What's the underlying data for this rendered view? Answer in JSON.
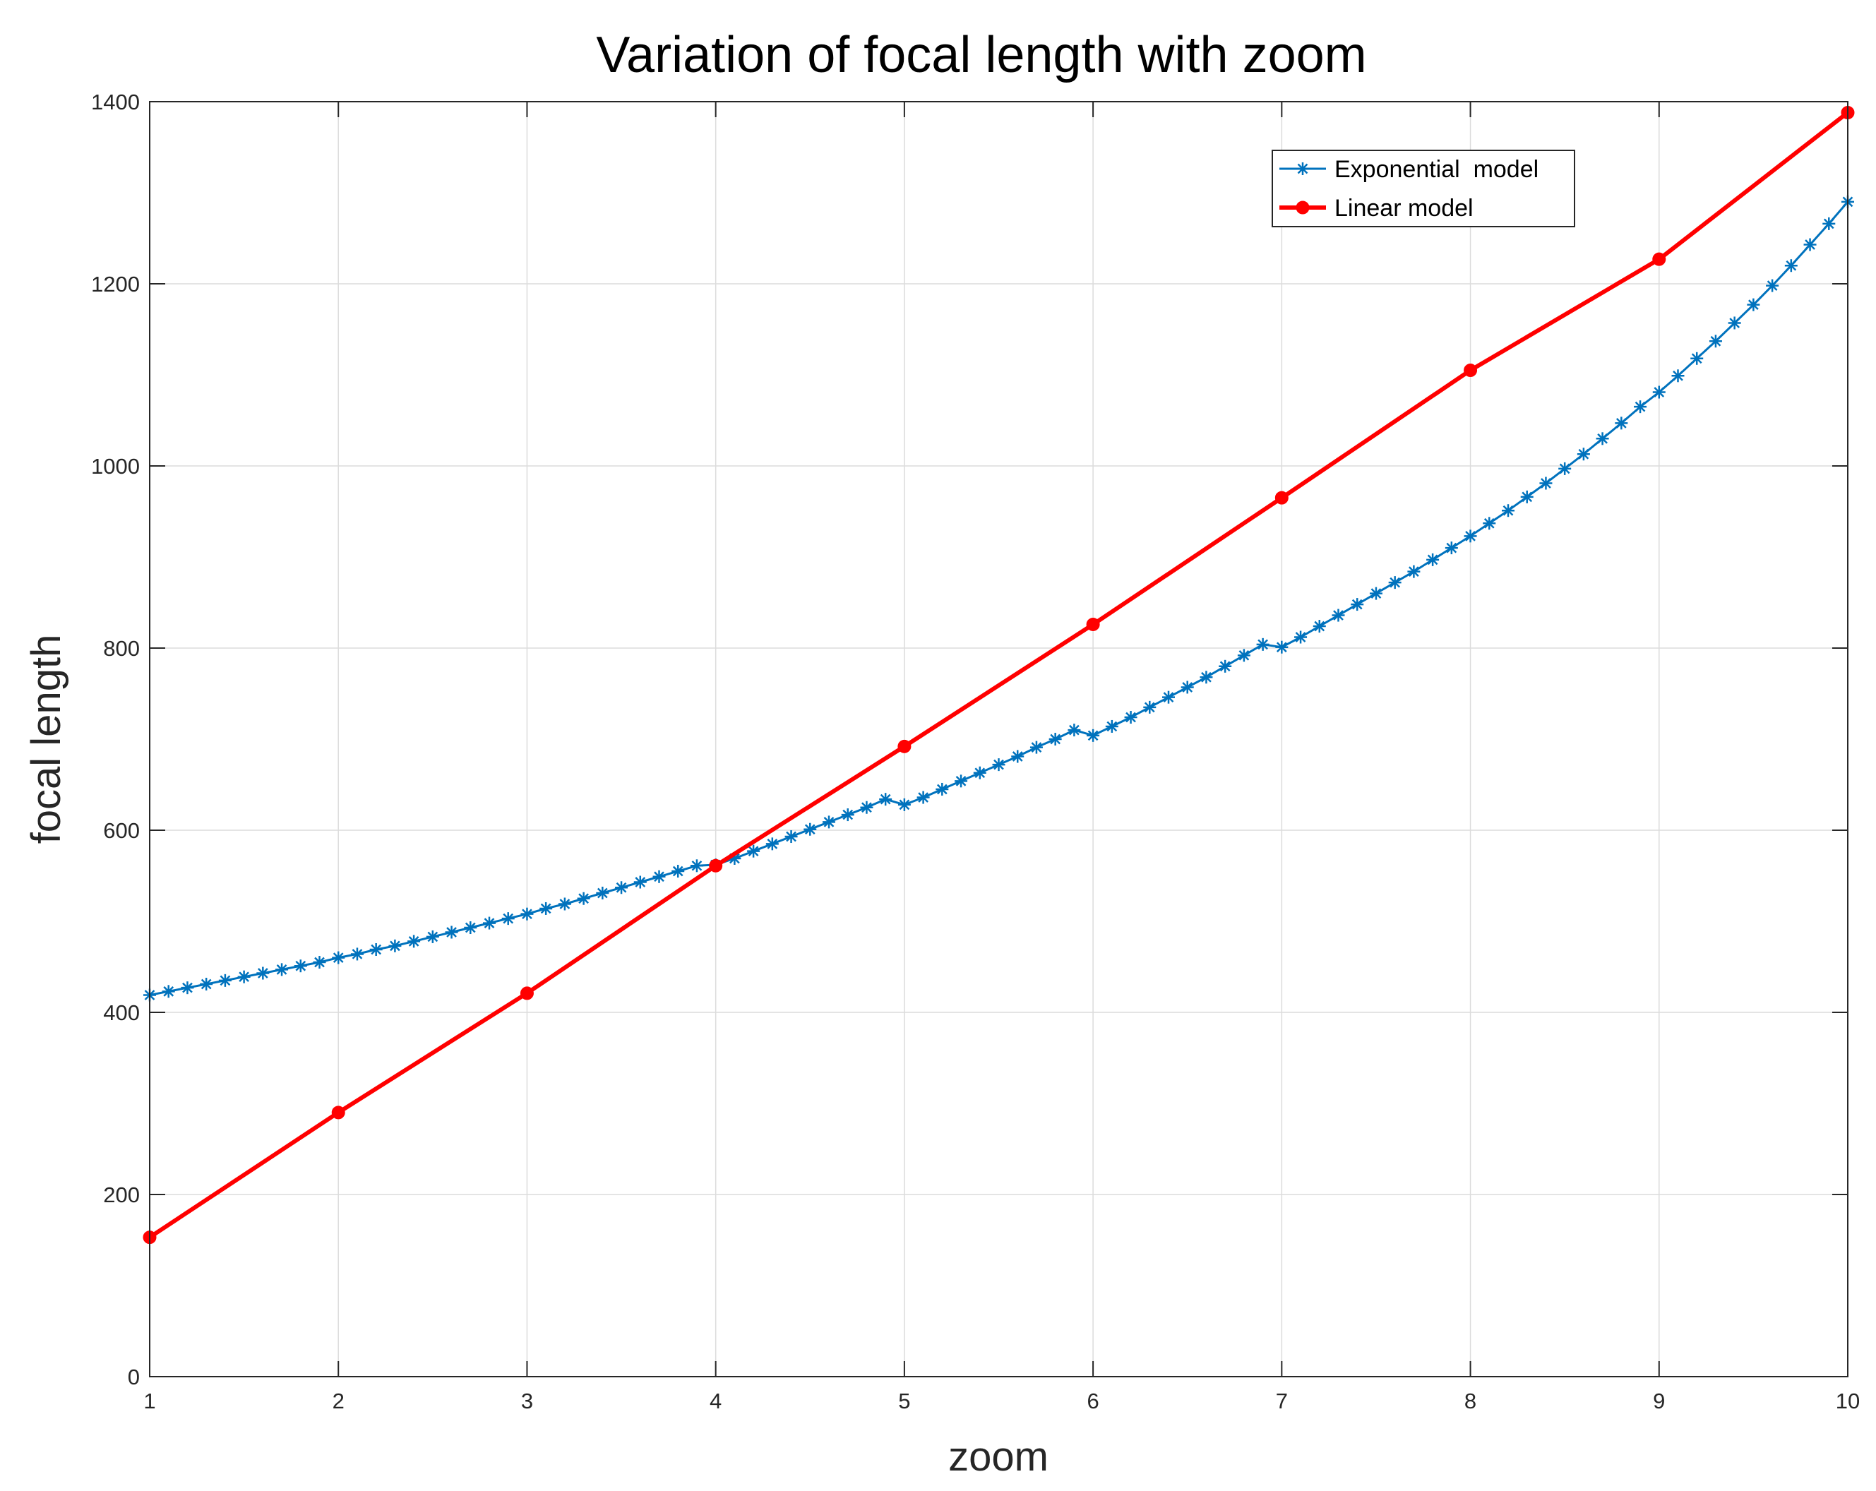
{
  "chart_data": {
    "type": "line",
    "title": "Variation of focal length with zoom",
    "xlabel": "zoom",
    "ylabel": "focal length",
    "xlim": [
      1,
      10
    ],
    "ylim": [
      0,
      1400
    ],
    "xticks": [
      1,
      2,
      3,
      4,
      5,
      6,
      7,
      8,
      9,
      10
    ],
    "yticks": [
      0,
      200,
      400,
      600,
      800,
      1000,
      1200,
      1400
    ],
    "xtick_labels": [
      "1",
      "2",
      "3",
      "4",
      "5",
      "6",
      "7",
      "8",
      "9",
      "10"
    ],
    "ytick_labels": [
      "0",
      "200",
      "400",
      "600",
      "800",
      "1000",
      "1200",
      "1400"
    ],
    "grid": true,
    "legend_position": "top-right",
    "series": [
      {
        "name": "Exponential  model",
        "color": "#0072BD",
        "marker": "asterisk",
        "x": [
          1.0,
          1.1,
          1.2,
          1.3,
          1.4,
          1.5,
          1.6,
          1.7,
          1.8,
          1.9,
          2.0,
          2.1,
          2.2,
          2.3,
          2.4,
          2.5,
          2.6,
          2.7,
          2.8,
          2.9,
          3.0,
          3.1,
          3.2,
          3.3,
          3.4,
          3.5,
          3.6,
          3.7,
          3.8,
          3.9,
          4.0,
          4.1,
          4.2,
          4.3,
          4.4,
          4.5,
          4.6,
          4.7,
          4.8,
          4.9,
          5.0,
          5.1,
          5.2,
          5.3,
          5.4,
          5.5,
          5.6,
          5.7,
          5.8,
          5.9,
          6.0,
          6.1,
          6.2,
          6.3,
          6.4,
          6.5,
          6.6,
          6.7,
          6.8,
          6.9,
          7.0,
          7.1,
          7.2,
          7.3,
          7.4,
          7.5,
          7.6,
          7.7,
          7.8,
          7.9,
          8.0,
          8.1,
          8.2,
          8.3,
          8.4,
          8.5,
          8.6,
          8.7,
          8.8,
          8.9,
          9.0,
          9.1,
          9.2,
          9.3,
          9.4,
          9.5,
          9.6,
          9.7,
          9.8,
          9.9,
          10.0
        ],
        "y": [
          419,
          423,
          427,
          431,
          435,
          439,
          443,
          447,
          451,
          455,
          460,
          464,
          469,
          473,
          478,
          483,
          488,
          493,
          498,
          503,
          508,
          514,
          519,
          525,
          531,
          537,
          543,
          549,
          555,
          561,
          562,
          569,
          577,
          585,
          593,
          601,
          609,
          617,
          625,
          634,
          628,
          636,
          645,
          654,
          663,
          672,
          681,
          691,
          700,
          710,
          704,
          714,
          724,
          735,
          746,
          757,
          768,
          780,
          792,
          804,
          801,
          812,
          824,
          836,
          848,
          860,
          872,
          884,
          897,
          910,
          923,
          937,
          951,
          966,
          981,
          997,
          1013,
          1030,
          1047,
          1065,
          1081,
          1099,
          1118,
          1137,
          1157,
          1177,
          1198,
          1220,
          1243,
          1266,
          1290
        ]
      },
      {
        "name": "Linear model",
        "color": "#FF0000",
        "marker": "circle",
        "x": [
          1,
          2,
          3,
          4,
          5,
          6,
          7,
          8,
          9,
          10
        ],
        "y": [
          153,
          290,
          421,
          561,
          692,
          826,
          965,
          1105,
          1227,
          1388
        ]
      }
    ]
  }
}
